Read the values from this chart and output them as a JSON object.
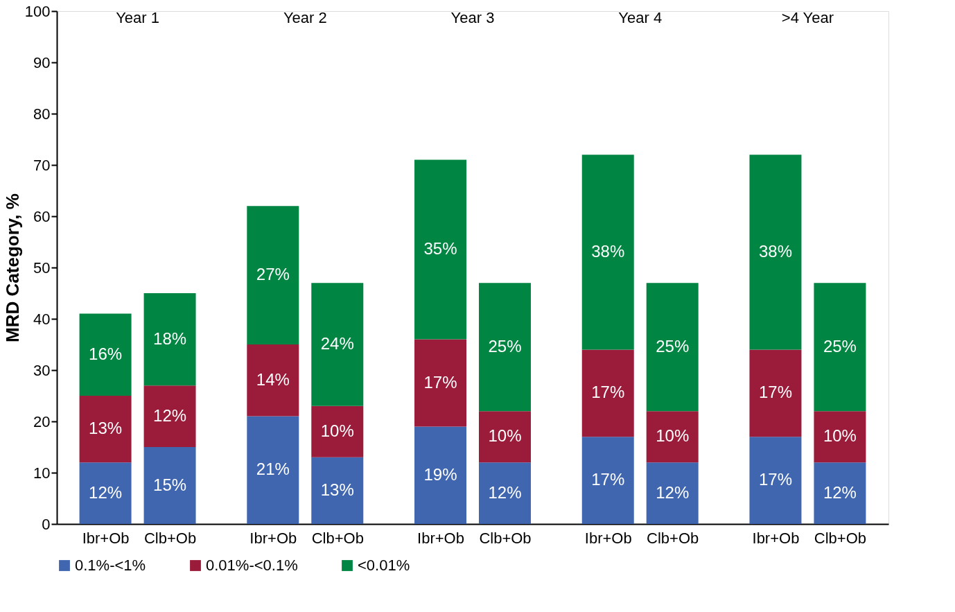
{
  "chart_data": {
    "type": "bar",
    "stacked": true,
    "ylabel": "MRD Category, %",
    "categories": [
      "Ibr+Ob",
      "Clb+Ob",
      "Ibr+Ob",
      "Clb+Ob",
      "Ibr+Ob",
      "Clb+Ob",
      "Ibr+Ob",
      "Clb+Ob",
      "Ibr+Ob",
      "Clb+Ob"
    ],
    "annotations": [
      "Year 1",
      "Year 2",
      "Year 3",
      "Year 4",
      ">4 Year"
    ],
    "series": [
      {
        "name": "0.1%-<1%",
        "color": "#4166b0",
        "values": [
          12,
          15,
          21,
          13,
          19,
          12,
          17,
          12,
          17,
          12
        ],
        "value_labels": [
          "12%",
          "15%",
          "21%",
          "13%",
          "19%",
          "12%",
          "17%",
          "12%",
          "17%",
          "12%"
        ]
      },
      {
        "name": "0.01%-<0.1%",
        "color": "#9b1b3a",
        "values": [
          13,
          12,
          14,
          10,
          17,
          10,
          17,
          10,
          17,
          10
        ],
        "value_labels": [
          "13%",
          "12%",
          "14%",
          "10%",
          "17%",
          "10%",
          "17%",
          "10%",
          "17%",
          "10%"
        ]
      },
      {
        "name": "<0.01%",
        "color": "#008542",
        "values": [
          16,
          18,
          27,
          24,
          35,
          25,
          38,
          25,
          38,
          25
        ],
        "value_labels": [
          "16%",
          "18%",
          "27%",
          "24%",
          "35%",
          "25%",
          "38%",
          "25%",
          "38%",
          "25%"
        ]
      }
    ],
    "ylim": [
      0,
      100
    ],
    "yticks": [
      0,
      10,
      20,
      30,
      40,
      50,
      60,
      70,
      80,
      90,
      100
    ],
    "grid": false,
    "legend": "bottom"
  }
}
